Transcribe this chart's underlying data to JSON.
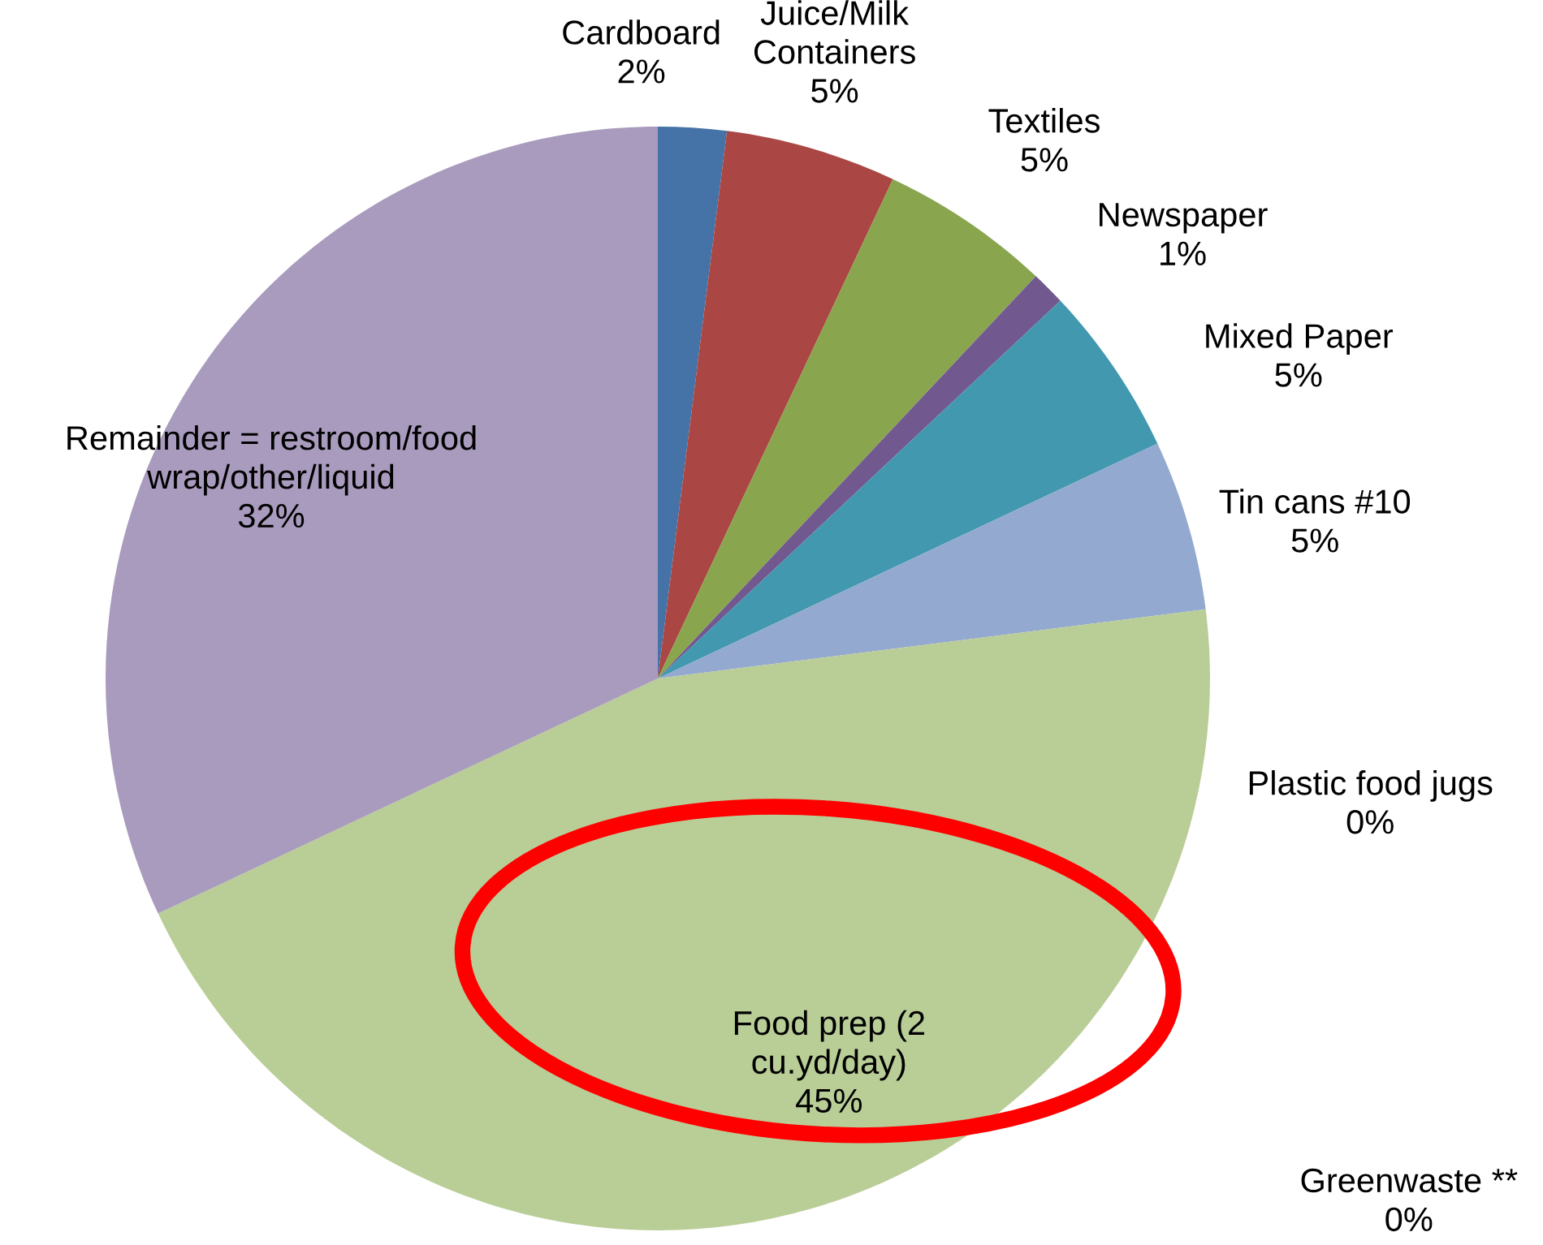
{
  "chart_data": {
    "type": "pie",
    "categories": [
      "Cardboard",
      "Juice/Milk Containers",
      "Textiles",
      "Newspaper",
      "Mixed Paper",
      "Plastic food jugs",
      "Tin cans #10",
      "Greenwaste **",
      "Food prep (2 cu.yd/day)",
      "Remainder = restroom/food wrap/other/liquid"
    ],
    "values": [
      2,
      5,
      5,
      1,
      5,
      0,
      5,
      0,
      45,
      32
    ],
    "value_labels": [
      "2%",
      "5%",
      "5%",
      "1%",
      "5%",
      "0%",
      "5%",
      "0%",
      "45%",
      "32%"
    ],
    "colors": [
      "#4572a7",
      "#aa4643",
      "#89a54e",
      "#71588f",
      "#4198af",
      "#db843d",
      "#93a9cf",
      "#d19392",
      "#b9cd96",
      "#a99bbd"
    ],
    "legend": false
  }
}
